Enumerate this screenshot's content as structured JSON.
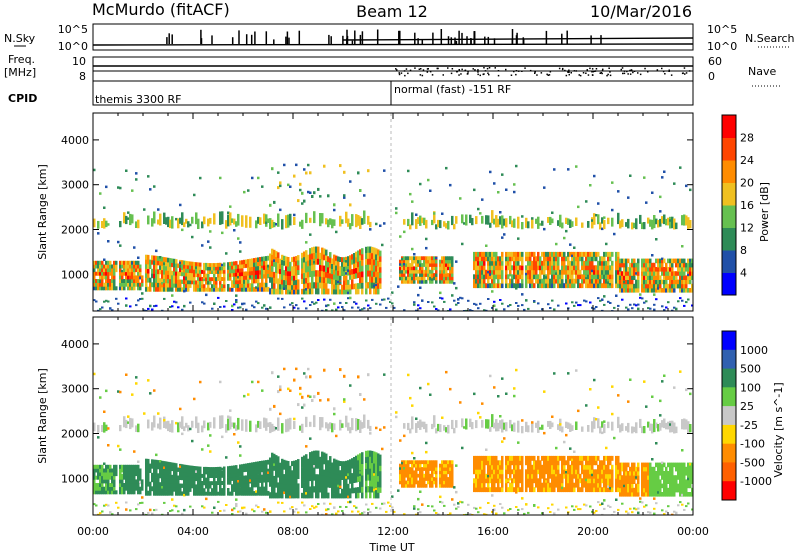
{
  "header": {
    "station": "McMurdo (fitACF)",
    "beam": "Beam 12",
    "date": "10/Mar/2016"
  },
  "strips": {
    "nsky_label": "N.Sky",
    "nsearch_label": "N.Search",
    "nsky_ticks": [
      "10^5",
      "10^0"
    ],
    "nsearch_ticks": [
      "10^5",
      "10^0"
    ],
    "freq_label_1": "Freq.",
    "freq_label_2": "[MHz]",
    "freq_ticks": [
      "10",
      "8"
    ],
    "nave_label": "Nave",
    "nave_ticks": [
      "60",
      "0"
    ],
    "cpid_label": "CPID",
    "cpid_first": "themis 3300 RF",
    "cpid_second": "normal (fast) -151 RF"
  },
  "chart_data": [
    {
      "type": "heatmap",
      "name": "Power",
      "ylabel": "Slant Range [km]",
      "xlabel": "Time UT",
      "x_ticks": [
        "00:00",
        "04:00",
        "08:00",
        "12:00",
        "16:00",
        "20:00",
        "00:00"
      ],
      "x_range_hours": [
        0,
        24
      ],
      "y_ticks": [
        1000,
        2000,
        3000,
        4000
      ],
      "y_range_km": [
        180,
        4600
      ],
      "colorbar": {
        "label": "Power [dB]",
        "ticks": [
          4,
          8,
          12,
          16,
          20,
          24,
          28
        ],
        "range": [
          0,
          32
        ],
        "colors": [
          "#0000ff",
          "#2050a8",
          "#2e8b57",
          "#66c050",
          "#f0c020",
          "#ff8c00",
          "#ff4500",
          "#ff0000"
        ]
      },
      "bands_dB": [
        {
          "range_km": [
            600,
            1400
          ],
          "time_hours": [
            0,
            24
          ],
          "typical": 26
        },
        {
          "range_km": [
            2000,
            2400
          ],
          "time_hours": [
            0,
            24
          ],
          "typical": 14
        },
        {
          "range_km": [
            2600,
            3500
          ],
          "time_hours": [
            7,
            11
          ],
          "typical": 13
        }
      ]
    },
    {
      "type": "heatmap",
      "name": "Velocity",
      "ylabel": "Slant Range [km]",
      "xlabel": "Time UT",
      "x_ticks": [
        "00:00",
        "04:00",
        "08:00",
        "12:00",
        "16:00",
        "20:00",
        "00:00"
      ],
      "x_range_hours": [
        0,
        24
      ],
      "y_ticks": [
        1000,
        2000,
        3000,
        4000
      ],
      "y_range_km": [
        180,
        4600
      ],
      "colorbar": {
        "label": "Velocity [m s^-1]",
        "ticks": [
          1000,
          500,
          100,
          25,
          -25,
          -100,
          -500,
          -1000
        ],
        "colors": [
          "#0000ff",
          "#3060b0",
          "#2e8b57",
          "#66cc44",
          "#c8c8c8",
          "#ffd700",
          "#ff8c00",
          "#ff6000",
          "#ff0000"
        ]
      },
      "bands_m_s": [
        {
          "range_km": [
            600,
            1400
          ],
          "time_hours": [
            0,
            11.8
          ],
          "typical": 150
        },
        {
          "range_km": [
            600,
            1500
          ],
          "time_hours": [
            11.8,
            23
          ],
          "typical": -200
        },
        {
          "range_km": [
            2000,
            2400
          ],
          "time_hours": [
            0,
            24
          ],
          "typical": 0
        }
      ]
    }
  ]
}
